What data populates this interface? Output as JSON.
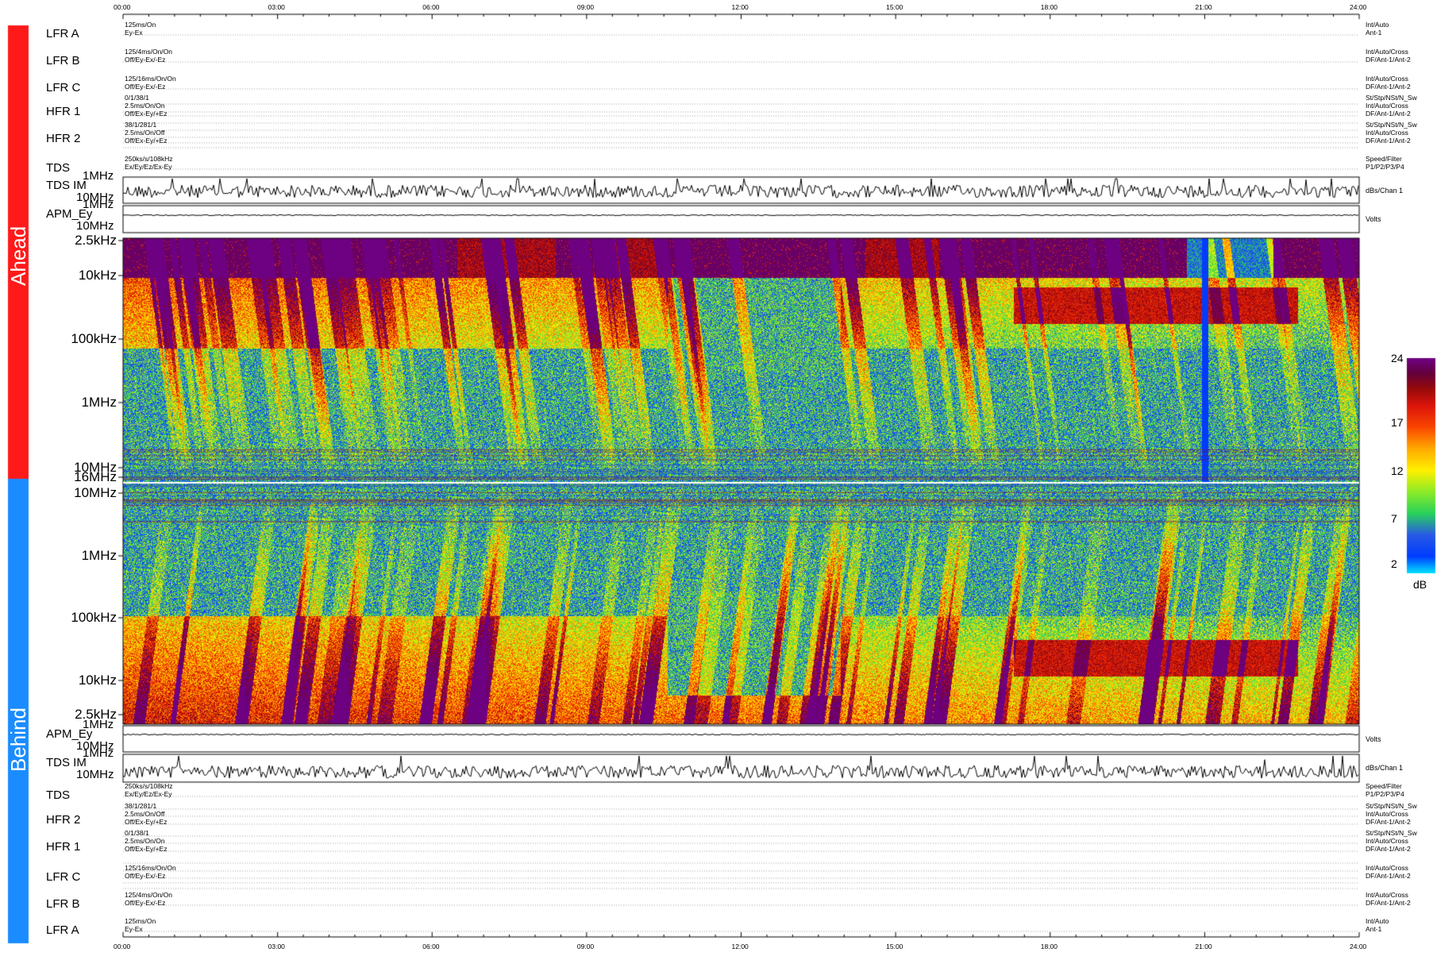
{
  "time_ticks": [
    "00:00",
    "03:00",
    "06:00",
    "09:00",
    "12:00",
    "15:00",
    "18:00",
    "21:00",
    "24:00"
  ],
  "sections": {
    "ahead": "Ahead",
    "behind": "Behind"
  },
  "colors": {
    "ahead": "#ff1a1a",
    "behind": "#1a8cff"
  },
  "rows_ahead": [
    {
      "label": "LFR A",
      "settings": [
        "125ms/On",
        "Ey-Ex"
      ],
      "right": [
        "Int/Auto",
        "Ant-1"
      ]
    },
    {
      "label": "LFR B",
      "settings": [
        "125/4ms/On/On",
        "Off/Ey-Ex/-Ez"
      ],
      "right": [
        "Int/Auto/Cross",
        "DF/Ant-1/Ant-2"
      ]
    },
    {
      "label": "LFR C",
      "settings": [
        "125/16ms/On/On",
        "Off/Ey-Ex/-Ez"
      ],
      "right": [
        "Int/Auto/Cross",
        "DF/Ant-1/Ant-2"
      ]
    },
    {
      "label": "HFR 1",
      "settings": [
        "0/1/38/1",
        "2.5ms/On/On",
        "Off/Ex-Ey/+Ez"
      ],
      "right": [
        "St/Stp/NSt/N_Sw",
        "Int/Auto/Cross",
        "DF/Ant-1/Ant-2"
      ]
    },
    {
      "label": "HFR 2",
      "settings": [
        "38/1/281/1",
        "2.5ms/On/Off",
        "Off/Ex-Ey/+Ez"
      ],
      "right": [
        "St/Stp/NSt/N_Sw",
        "Int/Auto/Cross",
        "DF/Ant-1/Ant-2"
      ]
    },
    {
      "label": "TDS",
      "settings": [
        "250ks/s/108kHz",
        "Ex/Ey/Ez/Ex-Ey"
      ],
      "right": [
        "Speed/Filter",
        "P1/P2/P3/P4"
      ]
    }
  ],
  "rows_behind": [
    {
      "label": "TDS",
      "settings": [
        "250ks/s/108kHz",
        "Ex/Ey/Ez/Ex-Ey"
      ],
      "right": [
        "Speed/Filter",
        "P1/P2/P3/P4"
      ]
    },
    {
      "label": "HFR 2",
      "settings": [
        "38/1/281/1",
        "2.5ms/On/Off",
        "Off/Ex-Ey/+Ez"
      ],
      "right": [
        "St/Stp/NSt/N_Sw",
        "Int/Auto/Cross",
        "DF/Ant-1/Ant-2"
      ]
    },
    {
      "label": "HFR 1",
      "settings": [
        "0/1/38/1",
        "2.5ms/On/On",
        "Off/Ex-Ey/+Ez"
      ],
      "right": [
        "St/Stp/NSt/N_Sw",
        "Int/Auto/Cross",
        "DF/Ant-1/Ant-2"
      ]
    },
    {
      "label": "LFR C",
      "settings": [
        "125/16ms/On/On",
        "Off/Ey-Ex/-Ez"
      ],
      "right": [
        "Int/Auto/Cross",
        "DF/Ant-1/Ant-2"
      ]
    },
    {
      "label": "LFR B",
      "settings": [
        "125/4ms/On/On",
        "Off/Ey-Ex/-Ez"
      ],
      "right": [
        "Int/Auto/Cross",
        "DF/Ant-1/Ant-2"
      ]
    },
    {
      "label": "LFR A",
      "settings": [
        "125ms/On",
        "Ey-Ex"
      ],
      "right": [
        "Int/Auto",
        "Ant-1"
      ]
    }
  ],
  "ahead_strips": [
    {
      "label": "TDS IM",
      "top": "1MHz",
      "bottom": "10MHz",
      "unit": "dBs/Chan 1"
    },
    {
      "label": "APM_Ey",
      "top": "1MHz",
      "bottom": "10MHz",
      "unit": "Volts"
    }
  ],
  "behind_strips": [
    {
      "label": "APM_Ey",
      "top": "1MHz",
      "bottom": "10MHz",
      "unit": "Volts"
    },
    {
      "label": "TDS IM",
      "top": "1MHz",
      "bottom": "10MHz",
      "unit": "dBs/Chan 1"
    }
  ],
  "chart_data": {
    "type": "heatmap",
    "x_range": [
      "00:00",
      "24:00"
    ],
    "ahead_y_ticks": [
      "2.5kHz",
      "10kHz",
      "100kHz",
      "1MHz",
      "10MHz",
      "16MHz"
    ],
    "behind_y_ticks": [
      "10MHz",
      "1MHz",
      "100kHz",
      "10kHz",
      "2.5kHz"
    ],
    "colorbar": {
      "ticks": [
        24,
        17,
        12,
        7,
        2
      ],
      "unit": "dB",
      "range": [
        2,
        24
      ]
    }
  }
}
